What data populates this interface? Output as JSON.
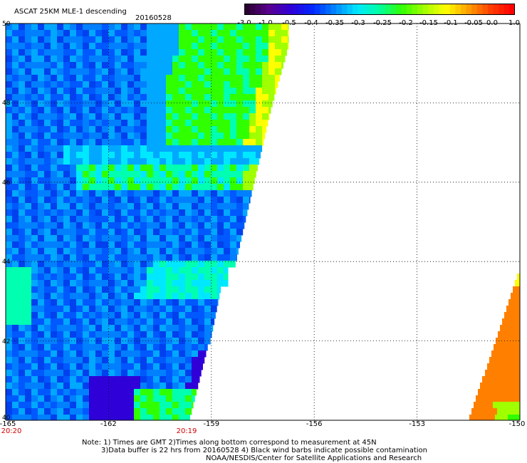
{
  "title": "ASCAT 25KM MLE-1 descending",
  "date": "20160528",
  "colorbar": {
    "ticks": [
      "-3.0",
      "-1.0",
      "-0.5",
      "-0.4",
      "-0.35",
      "-0.3",
      "-0.25",
      "-0.2",
      "-0.15",
      "-0.1",
      "-0.05",
      "0.0",
      "1.0"
    ],
    "colors": [
      "#2a0030",
      "#5a0090",
      "#2e00d8",
      "#0028ff",
      "#0088ff",
      "#00e8ff",
      "#00ffa0",
      "#30ff00",
      "#a0ff00",
      "#ffff00",
      "#ffa000",
      "#ff4000",
      "#ff0000"
    ]
  },
  "axes": {
    "lat_labels": [
      "50",
      "48",
      "46",
      "44",
      "42",
      "40"
    ],
    "lon_labels": [
      "-165",
      "-162",
      "-159",
      "-156",
      "-153",
      "-150"
    ],
    "time_labels": [
      "20:20",
      "20:19"
    ]
  },
  "map": {
    "lon_range": [
      -165,
      -150
    ],
    "lat_range": [
      40,
      50
    ],
    "grid": true
  },
  "notes": {
    "line1": "Note: 1) Times are GMT 2)Times along bottom correspond to measurement at 45N",
    "line2": "3)Data buffer is 22 hrs from 20160528 4) Black wind barbs indicate possible contamination",
    "line3": "NOAA/NESDIS/Center for Satellite Applications and Research"
  }
}
